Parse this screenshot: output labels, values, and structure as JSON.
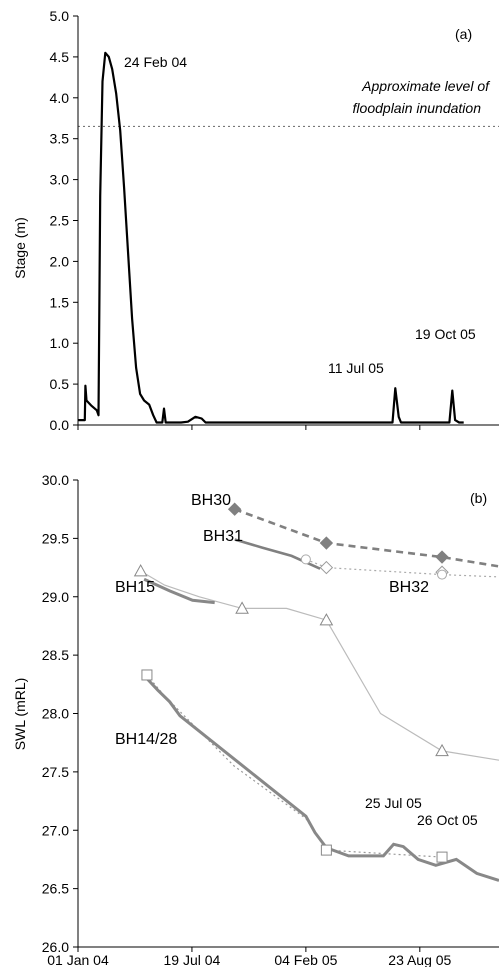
{
  "chart_data": [
    {
      "type": "line",
      "panel_label": "(a)",
      "ylabel": "Stage (m)",
      "ylim": [
        0,
        5
      ],
      "y_ticks": [
        "0.0",
        "0.5",
        "1.0",
        "1.5",
        "2.0",
        "2.5",
        "3.0",
        "3.5",
        "4.0",
        "4.5",
        "5.0"
      ],
      "grid": false,
      "series": [
        {
          "color": "#000000",
          "points": [
            [
              "2004-01-01",
              0.06
            ],
            [
              "2004-01-13",
              0.06
            ],
            [
              "2004-01-14",
              0.48
            ],
            [
              "2004-01-16",
              0.3
            ],
            [
              "2004-01-24",
              0.24
            ],
            [
              "2004-02-03",
              0.18
            ],
            [
              "2004-02-06",
              0.12
            ],
            [
              "2004-02-09",
              2.8
            ],
            [
              "2004-02-13",
              4.2
            ],
            [
              "2004-02-18",
              4.55
            ],
            [
              "2004-02-24",
              4.5
            ],
            [
              "2004-03-01",
              4.35
            ],
            [
              "2004-03-08",
              4.05
            ],
            [
              "2004-03-15",
              3.6
            ],
            [
              "2004-03-22",
              2.9
            ],
            [
              "2004-03-29",
              2.1
            ],
            [
              "2004-04-05",
              1.3
            ],
            [
              "2004-04-12",
              0.7
            ],
            [
              "2004-04-19",
              0.38
            ],
            [
              "2004-04-26",
              0.3
            ],
            [
              "2004-05-05",
              0.25
            ],
            [
              "2004-05-12",
              0.12
            ],
            [
              "2004-05-18",
              0.03
            ],
            [
              "2004-05-28",
              0.03
            ],
            [
              "2004-05-31",
              0.2
            ],
            [
              "2004-06-03",
              0.03
            ],
            [
              "2004-06-30",
              0.03
            ],
            [
              "2004-07-12",
              0.04
            ],
            [
              "2004-07-25",
              0.1
            ],
            [
              "2004-08-05",
              0.08
            ],
            [
              "2004-08-12",
              0.03
            ],
            [
              "2005-07-06",
              0.03
            ],
            [
              "2005-07-11",
              0.45
            ],
            [
              "2005-07-17",
              0.1
            ],
            [
              "2005-07-21",
              0.03
            ],
            [
              "2005-10-14",
              0.03
            ],
            [
              "2005-10-19",
              0.42
            ],
            [
              "2005-10-24",
              0.06
            ],
            [
              "2005-10-31",
              0.03
            ],
            [
              "2005-11-08",
              0.03
            ]
          ]
        }
      ],
      "reference_line": {
        "y": 3.65,
        "label_lines": [
          "Approximate level of",
          "floodplain inundation"
        ]
      },
      "annotations": [
        "24 Feb 04",
        "11 Jul 05",
        "19 Oct 05"
      ]
    },
    {
      "type": "line",
      "panel_label": "(b)",
      "ylabel": "SWL (mRL)",
      "ylim": [
        26,
        30
      ],
      "y_ticks": [
        "26.0",
        "26.5",
        "27.0",
        "27.5",
        "28.0",
        "28.5",
        "29.0",
        "29.5",
        "30.0"
      ],
      "x_ticks": [
        "01 Jan 04",
        "19 Jul 04",
        "04 Feb 05",
        "23 Aug 05"
      ],
      "x_tick_dates": [
        "2004-01-01",
        "2004-07-19",
        "2005-02-04",
        "2005-08-23"
      ],
      "xlim": [
        "2004-01-01",
        "2006-01-09"
      ],
      "grid": false,
      "series": [
        {
          "name": "BH30",
          "color": "#808080",
          "line_style": "dashed",
          "marker": "filled-diamond",
          "points": [
            [
              "2004-10-02",
              29.75
            ],
            [
              "2005-03-12",
              29.46
            ],
            [
              "2005-10-01",
              29.34
            ],
            [
              "2006-01-09",
              29.26
            ]
          ],
          "markers": [
            [
              "2004-10-02",
              29.75
            ],
            [
              "2005-03-12",
              29.46
            ],
            [
              "2005-10-01",
              29.34
            ]
          ]
        },
        {
          "name": "BH31",
          "color": "#808080",
          "line_style": "solid",
          "marker": "none",
          "points": [
            [
              "2004-10-02",
              29.49
            ],
            [
              "2004-11-20",
              29.42
            ],
            [
              "2005-01-10",
              29.35
            ],
            [
              "2005-03-01",
              29.24
            ]
          ]
        },
        {
          "name": "BH32",
          "color": "#aaaaaa",
          "line_style": "dotted",
          "marker": "open-diamond",
          "points": [
            [
              "2005-02-04",
              29.32
            ],
            [
              "2005-03-12",
              29.25
            ],
            [
              "2005-10-01",
              29.19
            ],
            [
              "2006-01-09",
              29.17
            ]
          ],
          "markers": [
            [
              "2005-03-12",
              29.25
            ],
            [
              "2005-10-01",
              29.21
            ]
          ],
          "extra_markers": [
            [
              "2005-02-04",
              29.32
            ],
            [
              "2005-10-01",
              29.19
            ]
          ]
        },
        {
          "name": "BH15",
          "color": "#bbbbbb",
          "line_style": "solid",
          "marker": "open-triangle",
          "points": [
            [
              "2004-04-20",
              29.22
            ],
            [
              "2004-06-01",
              29.1
            ],
            [
              "2004-08-01",
              29.0
            ],
            [
              "2004-10-15",
              28.9
            ],
            [
              "2005-01-01",
              28.9
            ],
            [
              "2005-03-12",
              28.8
            ],
            [
              "2005-06-15",
              28.0
            ],
            [
              "2005-10-01",
              27.68
            ],
            [
              "2006-01-09",
              27.6
            ]
          ],
          "markers": [
            [
              "2004-04-20",
              29.22
            ],
            [
              "2004-10-15",
              28.9
            ],
            [
              "2005-03-12",
              28.8
            ],
            [
              "2005-10-01",
              27.68
            ]
          ],
          "record_points": [
            [
              "2004-04-26",
              29.15
            ],
            [
              "2004-06-10",
              29.05
            ],
            [
              "2004-07-20",
              28.97
            ],
            [
              "2004-08-28",
              28.95
            ]
          ]
        },
        {
          "name": "BH14/28",
          "color": "#999999",
          "line_style": "dotted",
          "marker": "open-square",
          "points": [
            [
              "2004-05-01",
              28.33
            ],
            [
              "2004-06-01",
              28.15
            ],
            [
              "2004-10-01",
              27.55
            ],
            [
              "2005-02-04",
              27.1
            ],
            [
              "2005-03-12",
              26.83
            ],
            [
              "2005-10-01",
              26.77
            ]
          ],
          "markers": [
            [
              "2004-05-01",
              28.33
            ],
            [
              "2005-03-12",
              26.83
            ],
            [
              "2005-10-01",
              26.77
            ]
          ],
          "record_points": [
            [
              "2004-05-01",
              28.3
            ],
            [
              "2004-05-20",
              28.2
            ],
            [
              "2004-06-10",
              28.1
            ],
            [
              "2004-06-28",
              27.98
            ],
            [
              "2005-02-04",
              27.12
            ],
            [
              "2005-02-20",
              26.98
            ],
            [
              "2005-03-12",
              26.85
            ],
            [
              "2005-04-20",
              26.78
            ],
            [
              "2005-06-20",
              26.78
            ],
            [
              "2005-07-08",
              26.88
            ],
            [
              "2005-07-25",
              26.86
            ],
            [
              "2005-08-20",
              26.75
            ],
            [
              "2005-09-20",
              26.7
            ],
            [
              "2005-10-26",
              26.75
            ],
            [
              "2005-12-01",
              26.63
            ],
            [
              "2006-01-09",
              26.57
            ]
          ]
        }
      ],
      "annotations": [
        "25 Jul 05",
        "26 Oct 05"
      ]
    }
  ]
}
